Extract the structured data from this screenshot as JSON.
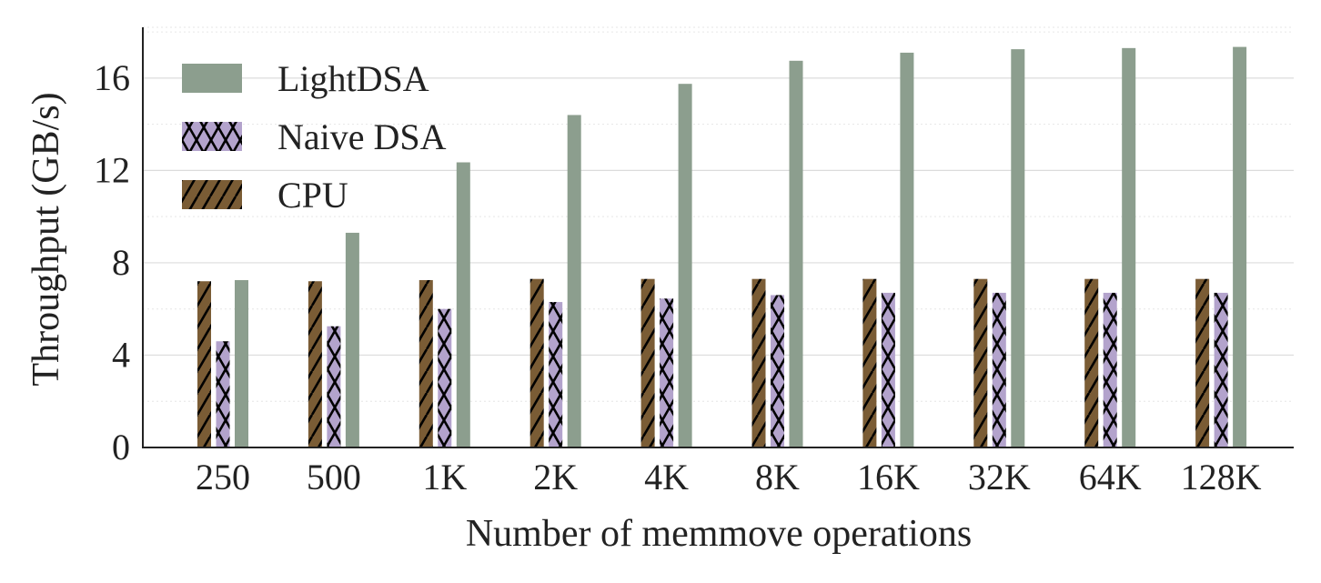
{
  "chart_data": {
    "type": "bar",
    "title": "",
    "xlabel": "Number of memmove operations",
    "ylabel": "Throughput (GB/s)",
    "categories": [
      "250",
      "500",
      "1K",
      "2K",
      "4K",
      "8K",
      "16K",
      "32K",
      "64K",
      "128K"
    ],
    "ylim": [
      0,
      18.2
    ],
    "yticks": [
      0,
      4,
      8,
      12,
      16
    ],
    "grid": "horizontal",
    "legend_position": "top-left",
    "series": [
      {
        "name": "CPU",
        "color": "#7a5c35",
        "pattern": "diagonal-hatch",
        "values": [
          7.2,
          7.2,
          7.25,
          7.3,
          7.3,
          7.3,
          7.3,
          7.3,
          7.3,
          7.3
        ]
      },
      {
        "name": "Naive DSA",
        "color": "#b3a3cc",
        "pattern": "cross-hatch",
        "values": [
          4.6,
          5.25,
          6.0,
          6.3,
          6.45,
          6.6,
          6.7,
          6.7,
          6.7,
          6.7
        ]
      },
      {
        "name": "LightDSA",
        "color": "#8c9e8e",
        "pattern": "solid",
        "values": [
          7.25,
          9.3,
          12.35,
          14.4,
          15.75,
          16.75,
          17.1,
          17.25,
          17.3,
          17.35
        ]
      }
    ],
    "legend_order": [
      "LightDSA",
      "Naive DSA",
      "CPU"
    ]
  }
}
